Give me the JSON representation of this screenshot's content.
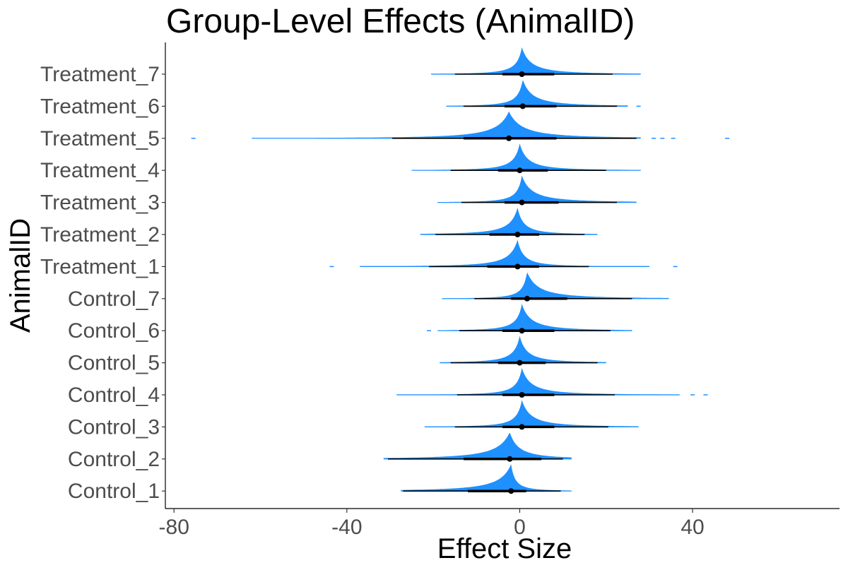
{
  "chart_data": {
    "type": "violin",
    "title": "Group-Level Effects (AnimalID)",
    "xlabel": "Effect Size",
    "ylabel": "AnimalID",
    "xlim": [
      -82,
      74
    ],
    "xticks": [
      -80,
      -40,
      0,
      40
    ],
    "xtick_labels": [
      "-80",
      "-40",
      "0",
      "40"
    ],
    "grid": false,
    "fill_color": "#1e90ff",
    "interval_color": "#000000",
    "categories": [
      "Treatment_7",
      "Treatment_6",
      "Treatment_5",
      "Treatment_4",
      "Treatment_3",
      "Treatment_2",
      "Treatment_1",
      "Control_7",
      "Control_6",
      "Control_5",
      "Control_4",
      "Control_3",
      "Control_2",
      "Control_1"
    ],
    "groups": [
      {
        "name": "Treatment_7",
        "median": 0.5,
        "inner": [
          -4,
          8
        ],
        "outer": [
          -15,
          21.5
        ],
        "range": [
          -20.5,
          28
        ],
        "outliers": []
      },
      {
        "name": "Treatment_6",
        "median": 0.7,
        "inner": [
          -3.5,
          8.5
        ],
        "outer": [
          -13,
          22.5
        ],
        "range": [
          -17,
          25
        ],
        "outliers": [
          27.5
        ]
      },
      {
        "name": "Treatment_5",
        "median": -2.5,
        "inner": [
          -13,
          8.5
        ],
        "outer": [
          -29.5,
          27
        ],
        "range": [
          -62,
          28
        ],
        "outliers": [
          -75.5,
          31,
          33,
          35.5,
          48
        ]
      },
      {
        "name": "Treatment_4",
        "median": 0,
        "inner": [
          -5,
          6.5
        ],
        "outer": [
          -16,
          20
        ],
        "range": [
          -25,
          28
        ],
        "outliers": []
      },
      {
        "name": "Treatment_3",
        "median": 0.5,
        "inner": [
          -3.5,
          9
        ],
        "outer": [
          -13.5,
          22.5
        ],
        "range": [
          -19,
          27
        ],
        "outliers": []
      },
      {
        "name": "Treatment_2",
        "median": -0.5,
        "inner": [
          -7,
          4.5
        ],
        "outer": [
          -19.5,
          15
        ],
        "range": [
          -23,
          18
        ],
        "outliers": []
      },
      {
        "name": "Treatment_1",
        "median": -0.5,
        "inner": [
          -7.5,
          4.5
        ],
        "outer": [
          -21,
          16
        ],
        "range": [
          -37,
          30
        ],
        "outliers": [
          -43.5,
          36
        ]
      },
      {
        "name": "Control_7",
        "median": 1.7,
        "inner": [
          -2,
          11
        ],
        "outer": [
          -10.5,
          26
        ],
        "range": [
          -18,
          34.5
        ],
        "outliers": []
      },
      {
        "name": "Control_6",
        "median": 0.5,
        "inner": [
          -4,
          8
        ],
        "outer": [
          -14,
          21
        ],
        "range": [
          -19,
          26
        ],
        "outliers": [
          -21
        ]
      },
      {
        "name": "Control_5",
        "median": 0,
        "inner": [
          -5,
          6
        ],
        "outer": [
          -16,
          18
        ],
        "range": [
          -18.5,
          20
        ],
        "outliers": []
      },
      {
        "name": "Control_4",
        "median": 0.5,
        "inner": [
          -4,
          8
        ],
        "outer": [
          -14.5,
          22
        ],
        "range": [
          -28.5,
          37
        ],
        "outliers": [
          40,
          43
        ]
      },
      {
        "name": "Control_3",
        "median": 0.5,
        "inner": [
          -4,
          8
        ],
        "outer": [
          -15,
          20.5
        ],
        "range": [
          -22,
          27.5
        ],
        "outliers": []
      },
      {
        "name": "Control_2",
        "median": -2.3,
        "inner": [
          -13,
          5
        ],
        "outer": [
          -30.5,
          10
        ],
        "range": [
          -31.5,
          12
        ],
        "outliers": []
      },
      {
        "name": "Control_1",
        "median": -2,
        "inner": [
          -12,
          1.5
        ],
        "outer": [
          -27,
          9.5
        ],
        "range": [
          -27.5,
          12
        ],
        "outliers": []
      }
    ]
  }
}
